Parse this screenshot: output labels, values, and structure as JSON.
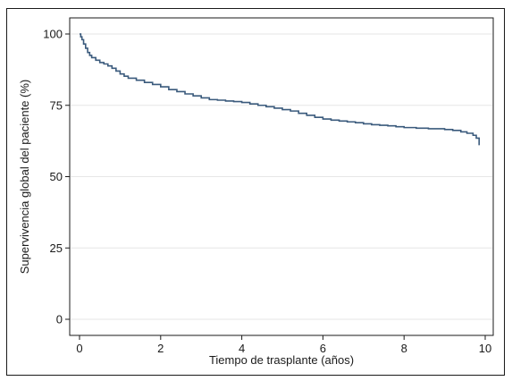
{
  "chart_data": {
    "type": "line",
    "title": "",
    "xlabel": "Tiempo de trasplante (años)",
    "ylabel": "Supervivencia global del paciente (%)",
    "xlim": [
      0,
      10
    ],
    "ylim": [
      0,
      100
    ],
    "xticks": [
      0,
      2,
      4,
      6,
      8,
      10
    ],
    "yticks": [
      0,
      25,
      50,
      75,
      100
    ],
    "grid": "horizontal",
    "legend": "none",
    "step": true,
    "color": "#3a5a7c",
    "series": [
      {
        "x": [
          0,
          0.03,
          0.06,
          0.1,
          0.15,
          0.2,
          0.25,
          0.3,
          0.4,
          0.5,
          0.6,
          0.7,
          0.8,
          0.9,
          1.0,
          1.1,
          1.2,
          1.4,
          1.6,
          1.8,
          2.0,
          2.2,
          2.4,
          2.6,
          2.8,
          3.0,
          3.2,
          3.4,
          3.6,
          3.8,
          4.0,
          4.2,
          4.4,
          4.6,
          4.8,
          5.0,
          5.2,
          5.4,
          5.6,
          5.8,
          6.0,
          6.2,
          6.4,
          6.6,
          6.8,
          7.0,
          7.2,
          7.4,
          7.6,
          7.8,
          8.0,
          8.3,
          8.6,
          9.0,
          9.2,
          9.4,
          9.55,
          9.7,
          9.78,
          9.85
        ],
        "y": [
          100,
          99,
          98,
          96.5,
          95,
          93.5,
          92.5,
          91.7,
          90.8,
          90,
          89.5,
          88.8,
          88,
          87,
          86,
          85.2,
          84.5,
          83.8,
          83,
          82.3,
          81.5,
          80.5,
          79.8,
          79,
          78.3,
          77.6,
          77,
          76.8,
          76.5,
          76.3,
          76,
          75.5,
          75,
          74.5,
          74,
          73.5,
          73,
          72.2,
          71.5,
          70.8,
          70.2,
          69.8,
          69.5,
          69.2,
          68.9,
          68.5,
          68.2,
          68,
          67.8,
          67.5,
          67.2,
          67,
          66.8,
          66.5,
          66.2,
          65.7,
          65.2,
          64.5,
          63.5,
          61
        ]
      }
    ]
  }
}
